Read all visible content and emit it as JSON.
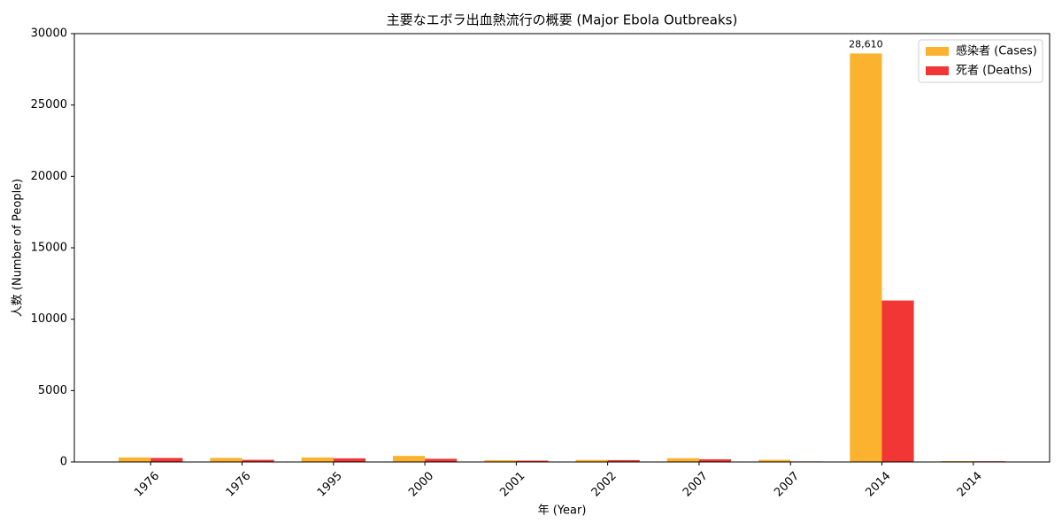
{
  "chart_data": {
    "type": "bar",
    "title": "主要なエボラ出血熱流行の概要 (Major Ebola Outbreaks)",
    "x_label": "年 (Year)",
    "y_label": "人数 (Number of People)",
    "categories": [
      "1976",
      "1976",
      "1995",
      "2000",
      "2001",
      "2002",
      "2007",
      "2007",
      "2014",
      "2014"
    ],
    "series": [
      {
        "name": "感染者 (Cases)",
        "color": "#fbb22f",
        "values": [
          318,
          284,
          315,
          425,
          122,
          143,
          264,
          149,
          28610,
          66
        ],
        "value_labels": [
          null,
          null,
          null,
          null,
          null,
          null,
          null,
          null,
          "28,610",
          null
        ]
      },
      {
        "name": "死者 (Deaths)",
        "color": "#f23535",
        "values": [
          280,
          151,
          254,
          224,
          96,
          128,
          187,
          37,
          11308,
          49
        ]
      }
    ],
    "ylim": [
      0,
      30000
    ],
    "yticks": [
      0,
      5000,
      10000,
      15000,
      20000,
      25000,
      30000
    ],
    "legend": "upper right"
  }
}
